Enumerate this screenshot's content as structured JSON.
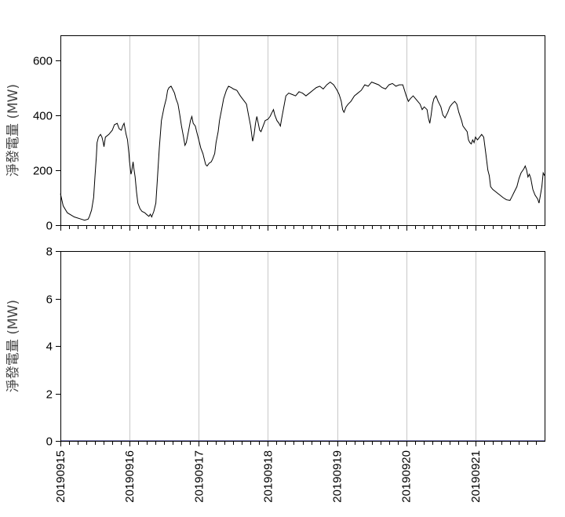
{
  "chart_data": [
    {
      "type": "line",
      "ylabel": "淨發電量 (MW)",
      "ylim": [
        0,
        690
      ],
      "yticks": [
        0,
        200,
        400,
        600
      ],
      "grid": "vertical",
      "x_ticks": [
        "20190915",
        "20190916",
        "20190917",
        "20190918",
        "20190919",
        "20190920",
        "20190921"
      ],
      "series": [
        {
          "color": "#000000",
          "points": [
            [
              0.0,
              115
            ],
            [
              0.04,
              70
            ],
            [
              0.1,
              45
            ],
            [
              0.2,
              30
            ],
            [
              0.3,
              22
            ],
            [
              0.35,
              18
            ],
            [
              0.4,
              22
            ],
            [
              0.42,
              32
            ],
            [
              0.45,
              55
            ],
            [
              0.48,
              100
            ],
            [
              0.5,
              180
            ],
            [
              0.52,
              250
            ],
            [
              0.53,
              300
            ],
            [
              0.55,
              320
            ],
            [
              0.58,
              330
            ],
            [
              0.6,
              320
            ],
            [
              0.62,
              300
            ],
            [
              0.63,
              285
            ],
            [
              0.65,
              320
            ],
            [
              0.7,
              330
            ],
            [
              0.75,
              345
            ],
            [
              0.78,
              365
            ],
            [
              0.82,
              370
            ],
            [
              0.85,
              350
            ],
            [
              0.88,
              345
            ],
            [
              0.9,
              360
            ],
            [
              0.92,
              370
            ],
            [
              0.95,
              330
            ],
            [
              0.97,
              310
            ],
            [
              0.99,
              260
            ],
            [
              1.0,
              230
            ],
            [
              1.02,
              185
            ],
            [
              1.03,
              195
            ],
            [
              1.05,
              230
            ],
            [
              1.06,
              210
            ],
            [
              1.08,
              175
            ],
            [
              1.1,
              120
            ],
            [
              1.12,
              80
            ],
            [
              1.15,
              60
            ],
            [
              1.18,
              50
            ],
            [
              1.22,
              45
            ],
            [
              1.25,
              38
            ],
            [
              1.28,
              32
            ],
            [
              1.3,
              40
            ],
            [
              1.32,
              30
            ],
            [
              1.35,
              50
            ],
            [
              1.38,
              80
            ],
            [
              1.4,
              160
            ],
            [
              1.43,
              280
            ],
            [
              1.46,
              380
            ],
            [
              1.5,
              430
            ],
            [
              1.53,
              460
            ],
            [
              1.55,
              490
            ],
            [
              1.57,
              500
            ],
            [
              1.6,
              505
            ],
            [
              1.62,
              495
            ],
            [
              1.65,
              480
            ],
            [
              1.67,
              460
            ],
            [
              1.7,
              440
            ],
            [
              1.72,
              410
            ],
            [
              1.75,
              360
            ],
            [
              1.78,
              320
            ],
            [
              1.8,
              290
            ],
            [
              1.82,
              300
            ],
            [
              1.85,
              340
            ],
            [
              1.88,
              380
            ],
            [
              1.9,
              395
            ],
            [
              1.92,
              370
            ],
            [
              1.95,
              360
            ],
            [
              1.97,
              340
            ],
            [
              2.0,
              310
            ],
            [
              2.03,
              280
            ],
            [
              2.06,
              260
            ],
            [
              2.08,
              240
            ],
            [
              2.1,
              220
            ],
            [
              2.12,
              215
            ],
            [
              2.15,
              225
            ],
            [
              2.18,
              230
            ],
            [
              2.2,
              240
            ],
            [
              2.23,
              260
            ],
            [
              2.25,
              300
            ],
            [
              2.28,
              340
            ],
            [
              2.3,
              380
            ],
            [
              2.33,
              420
            ],
            [
              2.36,
              460
            ],
            [
              2.4,
              490
            ],
            [
              2.43,
              505
            ],
            [
              2.47,
              500
            ],
            [
              2.5,
              495
            ],
            [
              2.55,
              490
            ],
            [
              2.6,
              470
            ],
            [
              2.63,
              460
            ],
            [
              2.66,
              450
            ],
            [
              2.69,
              440
            ],
            [
              2.72,
              400
            ],
            [
              2.75,
              360
            ],
            [
              2.77,
              320
            ],
            [
              2.78,
              305
            ],
            [
              2.8,
              330
            ],
            [
              2.82,
              370
            ],
            [
              2.84,
              395
            ],
            [
              2.86,
              370
            ],
            [
              2.88,
              345
            ],
            [
              2.9,
              340
            ],
            [
              2.93,
              360
            ],
            [
              2.96,
              380
            ],
            [
              3.0,
              385
            ],
            [
              3.03,
              395
            ],
            [
              3.06,
              410
            ],
            [
              3.08,
              420
            ],
            [
              3.1,
              400
            ],
            [
              3.13,
              380
            ],
            [
              3.16,
              370
            ],
            [
              3.18,
              360
            ],
            [
              3.2,
              390
            ],
            [
              3.23,
              430
            ],
            [
              3.26,
              470
            ],
            [
              3.3,
              480
            ],
            [
              3.35,
              475
            ],
            [
              3.4,
              470
            ],
            [
              3.45,
              485
            ],
            [
              3.5,
              480
            ],
            [
              3.55,
              470
            ],
            [
              3.6,
              480
            ],
            [
              3.65,
              490
            ],
            [
              3.7,
              500
            ],
            [
              3.75,
              505
            ],
            [
              3.8,
              495
            ],
            [
              3.85,
              510
            ],
            [
              3.9,
              520
            ],
            [
              3.95,
              510
            ],
            [
              4.0,
              490
            ],
            [
              4.03,
              475
            ],
            [
              4.06,
              450
            ],
            [
              4.08,
              420
            ],
            [
              4.1,
              410
            ],
            [
              4.13,
              430
            ],
            [
              4.16,
              440
            ],
            [
              4.2,
              450
            ],
            [
              4.25,
              470
            ],
            [
              4.3,
              480
            ],
            [
              4.35,
              490
            ],
            [
              4.4,
              510
            ],
            [
              4.45,
              505
            ],
            [
              4.5,
              520
            ],
            [
              4.55,
              515
            ],
            [
              4.6,
              510
            ],
            [
              4.65,
              500
            ],
            [
              4.7,
              495
            ],
            [
              4.75,
              510
            ],
            [
              4.8,
              515
            ],
            [
              4.85,
              505
            ],
            [
              4.9,
              510
            ],
            [
              4.95,
              510
            ],
            [
              5.0,
              470
            ],
            [
              5.03,
              450
            ],
            [
              5.06,
              460
            ],
            [
              5.1,
              470
            ],
            [
              5.15,
              455
            ],
            [
              5.2,
              440
            ],
            [
              5.23,
              420
            ],
            [
              5.26,
              430
            ],
            [
              5.3,
              420
            ],
            [
              5.32,
              390
            ],
            [
              5.34,
              370
            ],
            [
              5.36,
              400
            ],
            [
              5.38,
              440
            ],
            [
              5.4,
              460
            ],
            [
              5.43,
              470
            ],
            [
              5.46,
              450
            ],
            [
              5.5,
              430
            ],
            [
              5.53,
              400
            ],
            [
              5.56,
              390
            ],
            [
              5.6,
              410
            ],
            [
              5.63,
              430
            ],
            [
              5.66,
              440
            ],
            [
              5.7,
              450
            ],
            [
              5.73,
              440
            ],
            [
              5.76,
              410
            ],
            [
              5.8,
              380
            ],
            [
              5.82,
              360
            ],
            [
              5.85,
              350
            ],
            [
              5.88,
              340
            ],
            [
              5.9,
              310
            ],
            [
              5.92,
              300
            ],
            [
              5.94,
              295
            ],
            [
              5.96,
              310
            ],
            [
              5.98,
              300
            ],
            [
              6.0,
              320
            ],
            [
              6.03,
              310
            ],
            [
              6.06,
              320
            ],
            [
              6.09,
              330
            ],
            [
              6.12,
              320
            ],
            [
              6.15,
              260
            ],
            [
              6.18,
              200
            ],
            [
              6.2,
              180
            ],
            [
              6.22,
              140
            ],
            [
              6.25,
              130
            ],
            [
              6.3,
              120
            ],
            [
              6.35,
              110
            ],
            [
              6.4,
              100
            ],
            [
              6.45,
              92
            ],
            [
              6.5,
              90
            ],
            [
              6.53,
              105
            ],
            [
              6.56,
              120
            ],
            [
              6.6,
              140
            ],
            [
              6.63,
              170
            ],
            [
              6.66,
              190
            ],
            [
              6.7,
              205
            ],
            [
              6.72,
              215
            ],
            [
              6.74,
              200
            ],
            [
              6.76,
              175
            ],
            [
              6.78,
              185
            ],
            [
              6.8,
              170
            ],
            [
              6.83,
              130
            ],
            [
              6.86,
              110
            ],
            [
              6.9,
              95
            ],
            [
              6.92,
              80
            ],
            [
              6.94,
              110
            ],
            [
              6.96,
              140
            ],
            [
              6.98,
              190
            ],
            [
              7.0,
              180
            ]
          ]
        }
      ]
    },
    {
      "type": "line",
      "ylabel": "淨發電量 (MW)",
      "ylim": [
        0,
        8
      ],
      "yticks": [
        0,
        2,
        4,
        6,
        8
      ],
      "grid": "vertical",
      "x_ticks": [
        "20190915",
        "20190916",
        "20190917",
        "20190918",
        "20190919",
        "20190920",
        "20190921"
      ],
      "series": [
        {
          "color": "#5a5aa0",
          "points": [
            [
              0,
              0
            ],
            [
              7,
              0
            ]
          ]
        }
      ]
    }
  ]
}
